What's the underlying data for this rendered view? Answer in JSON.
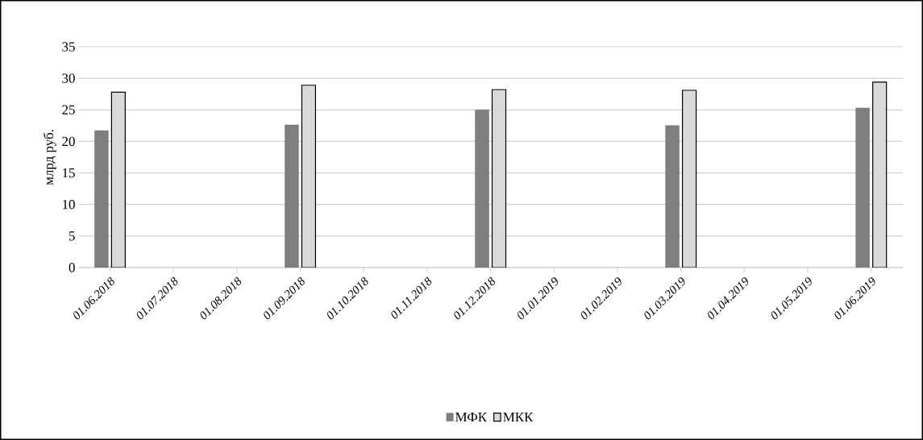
{
  "chart_data": {
    "type": "bar",
    "ylabel": "млрд руб.",
    "categories": [
      "01.06.2018",
      "01.07.2018",
      "01.08.2018",
      "01.09.2018",
      "01.10.2018",
      "01.11.2018",
      "01.12.2018",
      "01.01.2019",
      "01.02.2019",
      "01.03.2019",
      "01.04.2019",
      "01.05.2019",
      "01.06.2019"
    ],
    "series": [
      {
        "name": "МФК",
        "color": "#7f7f7f",
        "values": [
          21.7,
          null,
          null,
          22.6,
          null,
          null,
          25.0,
          null,
          null,
          22.5,
          null,
          null,
          25.3
        ]
      },
      {
        "name": "МКК",
        "color": "#d9d9d9",
        "values": [
          27.8,
          null,
          null,
          28.9,
          null,
          null,
          28.2,
          null,
          null,
          28.1,
          null,
          null,
          29.4
        ]
      }
    ],
    "ylim": [
      0,
      35
    ],
    "yticks": [
      0,
      5,
      10,
      15,
      20,
      25,
      30,
      35
    ],
    "grid": "y",
    "legend": "bottom"
  }
}
